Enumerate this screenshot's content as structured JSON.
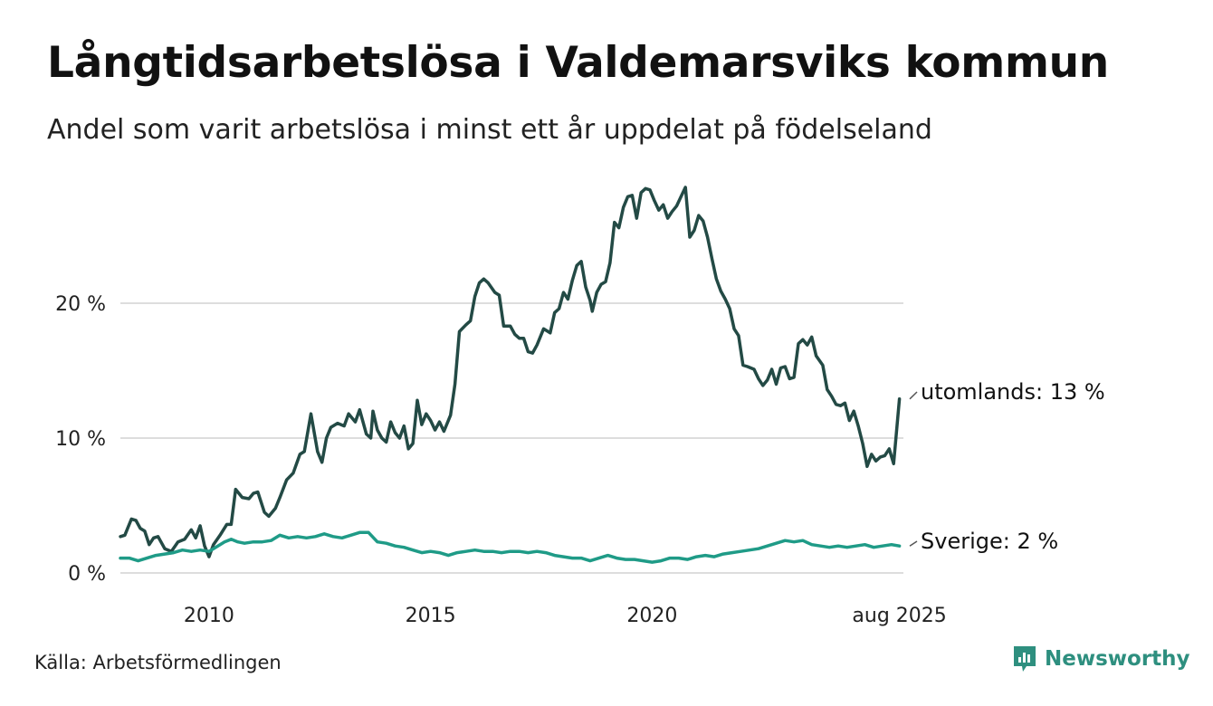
{
  "title": "Långtidsarbetslösa i Valdemarsviks kommun",
  "subtitle": "Andel som varit arbetslösa i minst ett år uppdelat på födelseland",
  "source": "Källa: Arbetsförmedlingen",
  "brand": {
    "name": "Newsworthy",
    "color": "#2e8f7f",
    "icon": "newsworthy-logo-icon"
  },
  "colors": {
    "utomlands": "#234a45",
    "sverige": "#1f9b87",
    "grid": "#dddddd"
  },
  "chart_data": {
    "type": "line",
    "grid": true,
    "ylim": [
      0,
      30
    ],
    "y_ticks": [
      {
        "value": 0,
        "label": "0 %"
      },
      {
        "value": 10,
        "label": "10 %"
      },
      {
        "value": 20,
        "label": "20 %"
      }
    ],
    "x_range": [
      2008.0,
      2025.67
    ],
    "x_ticks": [
      {
        "value": 2010,
        "label": "2010"
      },
      {
        "value": 2015,
        "label": "2015"
      },
      {
        "value": 2020,
        "label": "2020"
      },
      {
        "value": 2025.58,
        "label": "aug 2025"
      }
    ],
    "series": [
      {
        "key": "utomlands",
        "end_label": "utomlands: 13 %",
        "points": [
          [
            2008.0,
            2.7
          ],
          [
            2008.1,
            2.8
          ],
          [
            2008.25,
            4.0
          ],
          [
            2008.35,
            3.9
          ],
          [
            2008.45,
            3.3
          ],
          [
            2008.55,
            3.1
          ],
          [
            2008.65,
            2.1
          ],
          [
            2008.75,
            2.6
          ],
          [
            2008.85,
            2.7
          ],
          [
            2009.0,
            1.8
          ],
          [
            2009.15,
            1.6
          ],
          [
            2009.3,
            2.3
          ],
          [
            2009.45,
            2.5
          ],
          [
            2009.6,
            3.2
          ],
          [
            2009.7,
            2.6
          ],
          [
            2009.8,
            3.5
          ],
          [
            2009.9,
            2.0
          ],
          [
            2010.0,
            1.2
          ],
          [
            2010.1,
            2.1
          ],
          [
            2010.25,
            2.8
          ],
          [
            2010.4,
            3.6
          ],
          [
            2010.5,
            3.6
          ],
          [
            2010.6,
            6.2
          ],
          [
            2010.75,
            5.6
          ],
          [
            2010.9,
            5.5
          ],
          [
            2011.0,
            5.9
          ],
          [
            2011.1,
            6.0
          ],
          [
            2011.25,
            4.5
          ],
          [
            2011.35,
            4.2
          ],
          [
            2011.5,
            4.8
          ],
          [
            2011.6,
            5.6
          ],
          [
            2011.75,
            6.9
          ],
          [
            2011.9,
            7.4
          ],
          [
            2012.05,
            8.8
          ],
          [
            2012.15,
            9.0
          ],
          [
            2012.3,
            11.8
          ],
          [
            2012.45,
            9.0
          ],
          [
            2012.55,
            8.2
          ],
          [
            2012.65,
            10.0
          ],
          [
            2012.75,
            10.8
          ],
          [
            2012.9,
            11.1
          ],
          [
            2013.05,
            10.9
          ],
          [
            2013.15,
            11.8
          ],
          [
            2013.3,
            11.2
          ],
          [
            2013.4,
            12.1
          ],
          [
            2013.55,
            10.3
          ],
          [
            2013.65,
            10.0
          ],
          [
            2013.7,
            12.0
          ],
          [
            2013.8,
            10.6
          ],
          [
            2013.9,
            10.0
          ],
          [
            2014.0,
            9.7
          ],
          [
            2014.1,
            11.2
          ],
          [
            2014.2,
            10.4
          ],
          [
            2014.3,
            10.0
          ],
          [
            2014.4,
            10.9
          ],
          [
            2014.5,
            9.2
          ],
          [
            2014.6,
            9.6
          ],
          [
            2014.7,
            12.8
          ],
          [
            2014.8,
            11.0
          ],
          [
            2014.9,
            11.8
          ],
          [
            2015.0,
            11.3
          ],
          [
            2015.1,
            10.6
          ],
          [
            2015.2,
            11.2
          ],
          [
            2015.3,
            10.5
          ],
          [
            2015.45,
            11.7
          ],
          [
            2015.55,
            14.0
          ],
          [
            2015.65,
            17.9
          ],
          [
            2015.8,
            18.4
          ],
          [
            2015.9,
            18.7
          ],
          [
            2016.0,
            20.5
          ],
          [
            2016.1,
            21.5
          ],
          [
            2016.2,
            21.8
          ],
          [
            2016.3,
            21.5
          ],
          [
            2016.45,
            20.8
          ],
          [
            2016.55,
            20.6
          ],
          [
            2016.65,
            18.3
          ],
          [
            2016.8,
            18.3
          ],
          [
            2016.9,
            17.7
          ],
          [
            2017.0,
            17.4
          ],
          [
            2017.1,
            17.4
          ],
          [
            2017.2,
            16.4
          ],
          [
            2017.3,
            16.3
          ],
          [
            2017.4,
            16.9
          ],
          [
            2017.55,
            18.1
          ],
          [
            2017.7,
            17.8
          ],
          [
            2017.8,
            19.3
          ],
          [
            2017.9,
            19.6
          ],
          [
            2018.0,
            20.8
          ],
          [
            2018.1,
            20.3
          ],
          [
            2018.2,
            21.7
          ],
          [
            2018.3,
            22.8
          ],
          [
            2018.4,
            23.1
          ],
          [
            2018.5,
            21.2
          ],
          [
            2018.6,
            20.2
          ],
          [
            2018.65,
            19.4
          ],
          [
            2018.75,
            20.8
          ],
          [
            2018.85,
            21.4
          ],
          [
            2018.95,
            21.6
          ],
          [
            2019.05,
            23.0
          ],
          [
            2019.15,
            26.0
          ],
          [
            2019.25,
            25.6
          ],
          [
            2019.35,
            27.1
          ],
          [
            2019.45,
            27.9
          ],
          [
            2019.55,
            28.0
          ],
          [
            2019.65,
            26.3
          ],
          [
            2019.75,
            28.2
          ],
          [
            2019.85,
            28.5
          ],
          [
            2019.95,
            28.4
          ],
          [
            2020.05,
            27.6
          ],
          [
            2020.15,
            26.9
          ],
          [
            2020.25,
            27.3
          ],
          [
            2020.35,
            26.3
          ],
          [
            2020.45,
            26.8
          ],
          [
            2020.55,
            27.2
          ],
          [
            2020.65,
            27.9
          ],
          [
            2020.75,
            28.6
          ],
          [
            2020.85,
            24.9
          ],
          [
            2020.95,
            25.4
          ],
          [
            2021.05,
            26.5
          ],
          [
            2021.15,
            26.1
          ],
          [
            2021.25,
            24.9
          ],
          [
            2021.35,
            23.3
          ],
          [
            2021.45,
            21.8
          ],
          [
            2021.55,
            20.9
          ],
          [
            2021.65,
            20.3
          ],
          [
            2021.75,
            19.6
          ],
          [
            2021.85,
            18.1
          ],
          [
            2021.95,
            17.6
          ],
          [
            2022.05,
            15.4
          ],
          [
            2022.15,
            15.3
          ],
          [
            2022.3,
            15.1
          ],
          [
            2022.4,
            14.4
          ],
          [
            2022.5,
            13.9
          ],
          [
            2022.6,
            14.3
          ],
          [
            2022.7,
            15.1
          ],
          [
            2022.8,
            14.0
          ],
          [
            2022.9,
            15.2
          ],
          [
            2023.0,
            15.3
          ],
          [
            2023.1,
            14.4
          ],
          [
            2023.2,
            14.5
          ],
          [
            2023.3,
            17.0
          ],
          [
            2023.4,
            17.3
          ],
          [
            2023.5,
            16.9
          ],
          [
            2023.6,
            17.5
          ],
          [
            2023.7,
            16.1
          ],
          [
            2023.85,
            15.4
          ],
          [
            2023.95,
            13.6
          ],
          [
            2024.05,
            13.1
          ],
          [
            2024.15,
            12.5
          ],
          [
            2024.25,
            12.4
          ],
          [
            2024.35,
            12.6
          ],
          [
            2024.45,
            11.3
          ],
          [
            2024.55,
            12.0
          ],
          [
            2024.65,
            10.9
          ],
          [
            2024.75,
            9.6
          ],
          [
            2024.85,
            7.9
          ],
          [
            2024.95,
            8.8
          ],
          [
            2025.05,
            8.3
          ],
          [
            2025.15,
            8.6
          ],
          [
            2025.25,
            8.7
          ],
          [
            2025.35,
            9.2
          ],
          [
            2025.45,
            8.1
          ],
          [
            2025.58,
            12.9
          ]
        ]
      },
      {
        "key": "sverige",
        "end_label": "Sverige:  2 %",
        "points": [
          [
            2008.0,
            1.1
          ],
          [
            2008.2,
            1.1
          ],
          [
            2008.4,
            0.9
          ],
          [
            2008.6,
            1.1
          ],
          [
            2008.8,
            1.3
          ],
          [
            2009.0,
            1.4
          ],
          [
            2009.2,
            1.5
          ],
          [
            2009.4,
            1.7
          ],
          [
            2009.6,
            1.6
          ],
          [
            2009.8,
            1.7
          ],
          [
            2010.0,
            1.6
          ],
          [
            2010.2,
            2.0
          ],
          [
            2010.35,
            2.3
          ],
          [
            2010.5,
            2.5
          ],
          [
            2010.65,
            2.3
          ],
          [
            2010.8,
            2.2
          ],
          [
            2011.0,
            2.3
          ],
          [
            2011.2,
            2.3
          ],
          [
            2011.4,
            2.4
          ],
          [
            2011.6,
            2.8
          ],
          [
            2011.8,
            2.6
          ],
          [
            2012.0,
            2.7
          ],
          [
            2012.2,
            2.6
          ],
          [
            2012.4,
            2.7
          ],
          [
            2012.6,
            2.9
          ],
          [
            2012.8,
            2.7
          ],
          [
            2013.0,
            2.6
          ],
          [
            2013.2,
            2.8
          ],
          [
            2013.4,
            3.0
          ],
          [
            2013.6,
            3.0
          ],
          [
            2013.8,
            2.3
          ],
          [
            2014.0,
            2.2
          ],
          [
            2014.2,
            2.0
          ],
          [
            2014.4,
            1.9
          ],
          [
            2014.6,
            1.7
          ],
          [
            2014.8,
            1.5
          ],
          [
            2015.0,
            1.6
          ],
          [
            2015.2,
            1.5
          ],
          [
            2015.4,
            1.3
          ],
          [
            2015.6,
            1.5
          ],
          [
            2015.8,
            1.6
          ],
          [
            2016.0,
            1.7
          ],
          [
            2016.2,
            1.6
          ],
          [
            2016.4,
            1.6
          ],
          [
            2016.6,
            1.5
          ],
          [
            2016.8,
            1.6
          ],
          [
            2017.0,
            1.6
          ],
          [
            2017.2,
            1.5
          ],
          [
            2017.4,
            1.6
          ],
          [
            2017.6,
            1.5
          ],
          [
            2017.8,
            1.3
          ],
          [
            2018.0,
            1.2
          ],
          [
            2018.2,
            1.1
          ],
          [
            2018.4,
            1.1
          ],
          [
            2018.6,
            0.9
          ],
          [
            2018.8,
            1.1
          ],
          [
            2019.0,
            1.3
          ],
          [
            2019.2,
            1.1
          ],
          [
            2019.4,
            1.0
          ],
          [
            2019.6,
            1.0
          ],
          [
            2019.8,
            0.9
          ],
          [
            2020.0,
            0.8
          ],
          [
            2020.2,
            0.9
          ],
          [
            2020.4,
            1.1
          ],
          [
            2020.6,
            1.1
          ],
          [
            2020.8,
            1.0
          ],
          [
            2021.0,
            1.2
          ],
          [
            2021.2,
            1.3
          ],
          [
            2021.4,
            1.2
          ],
          [
            2021.6,
            1.4
          ],
          [
            2021.8,
            1.5
          ],
          [
            2022.0,
            1.6
          ],
          [
            2022.2,
            1.7
          ],
          [
            2022.4,
            1.8
          ],
          [
            2022.6,
            2.0
          ],
          [
            2022.8,
            2.2
          ],
          [
            2023.0,
            2.4
          ],
          [
            2023.2,
            2.3
          ],
          [
            2023.4,
            2.4
          ],
          [
            2023.6,
            2.1
          ],
          [
            2023.8,
            2.0
          ],
          [
            2024.0,
            1.9
          ],
          [
            2024.2,
            2.0
          ],
          [
            2024.4,
            1.9
          ],
          [
            2024.6,
            2.0
          ],
          [
            2024.8,
            2.1
          ],
          [
            2025.0,
            1.9
          ],
          [
            2025.2,
            2.0
          ],
          [
            2025.4,
            2.1
          ],
          [
            2025.58,
            2.0
          ]
        ]
      }
    ]
  }
}
